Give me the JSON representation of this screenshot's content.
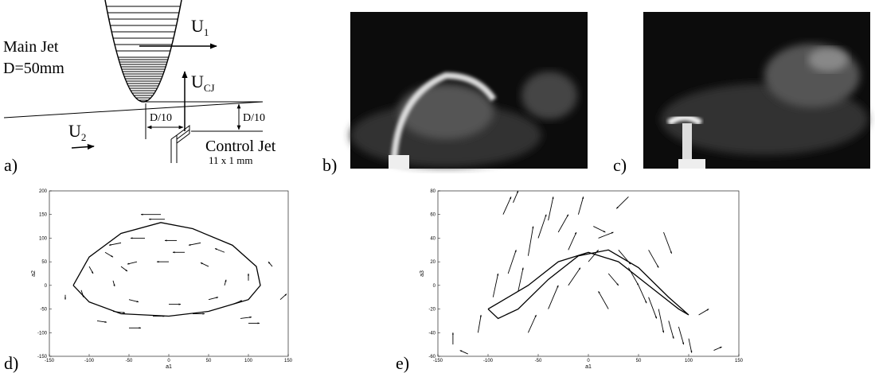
{
  "figure": {
    "panel_labels": [
      "a)",
      "b)",
      "c)",
      "d)",
      "e)"
    ],
    "diagram": {
      "u1": {
        "main": "U",
        "sub": "1"
      },
      "main_jet": "Main Jet",
      "diameter": "D=50mm",
      "ucj": {
        "main": "U",
        "sub": "CJ"
      },
      "offset_x": "D/10",
      "offset_y": "D/10",
      "u2": {
        "main": "U",
        "sub": "2"
      },
      "control_jet": "Control Jet",
      "control_size": "11 x 1 mm"
    }
  },
  "chart_data": [
    {
      "type": "quiver",
      "xlabel": "a1",
      "ylabel": "a2",
      "color": "#000000",
      "xlim": [
        -150,
        150
      ],
      "ylim": [
        -150,
        200
      ],
      "xticks": [
        -150,
        -100,
        -50,
        0,
        50,
        100,
        150
      ],
      "yticks": [
        -150,
        -100,
        -50,
        0,
        50,
        100,
        150,
        200
      ],
      "curve": {
        "x": [
          -120,
          -100,
          -60,
          -10,
          30,
          80,
          110,
          115,
          100,
          50,
          0,
          -60,
          -100,
          -120
        ],
        "y": [
          0,
          60,
          110,
          133,
          120,
          85,
          40,
          0,
          -30,
          -55,
          -65,
          -60,
          -35,
          0
        ]
      },
      "vectors": {
        "x": [
          -10,
          -5,
          -60,
          -30,
          10,
          40,
          70,
          100,
          80,
          30,
          -20,
          -70,
          -110,
          -100,
          -80,
          -60,
          -70,
          -50,
          0,
          50,
          70,
          50,
          0,
          -40,
          130,
          140,
          -130,
          100,
          -50,
          90,
          -90,
          20
        ],
        "y": [
          150,
          140,
          90,
          100,
          95,
          90,
          70,
          10,
          -40,
          -60,
          -65,
          -55,
          -10,
          40,
          70,
          40,
          10,
          -30,
          -40,
          -30,
          0,
          40,
          50,
          50,
          40,
          -30,
          -20,
          -80,
          -90,
          -70,
          -75,
          70
        ],
        "u": [
          -25,
          -20,
          -15,
          -18,
          -15,
          -15,
          -12,
          0,
          12,
          15,
          15,
          15,
          3,
          5,
          10,
          8,
          2,
          12,
          15,
          12,
          2,
          -10,
          -15,
          -12,
          -5,
          8,
          0,
          14,
          15,
          14,
          12,
          -15
        ],
        "v": [
          0,
          0,
          -5,
          0,
          0,
          -5,
          8,
          15,
          8,
          0,
          0,
          -3,
          -15,
          -15,
          -10,
          -10,
          -12,
          -5,
          0,
          5,
          12,
          8,
          0,
          -5,
          10,
          12,
          -10,
          0,
          0,
          3,
          -3,
          0
        ]
      }
    },
    {
      "type": "quiver",
      "xlabel": "a1",
      "ylabel": "a3",
      "color": "#000000",
      "xlim": [
        -150,
        150
      ],
      "ylim": [
        -60,
        80
      ],
      "xticks": [
        -150,
        -100,
        -50,
        0,
        50,
        100,
        150
      ],
      "yticks": [
        -60,
        -40,
        -20,
        0,
        20,
        40,
        60,
        80
      ],
      "curve": {
        "x": [
          -100,
          -90,
          -70,
          -40,
          -10,
          20,
          50,
          80,
          100,
          90,
          60,
          30,
          0,
          -30,
          -60,
          -90,
          -100
        ],
        "y": [
          -20,
          -28,
          -20,
          5,
          25,
          30,
          15,
          -10,
          -25,
          -20,
          0,
          20,
          28,
          20,
          0,
          -15,
          -20
        ]
      },
      "vectors": {
        "x": [
          -110,
          -95,
          -80,
          -60,
          -50,
          -40,
          -30,
          -20,
          -10,
          0,
          10,
          20,
          30,
          40,
          50,
          60,
          70,
          80,
          90,
          100,
          110,
          -60,
          -40,
          -70,
          -20,
          20,
          -120,
          -85,
          -75,
          40,
          75,
          125,
          -135,
          5,
          60
        ],
        "y": [
          -40,
          -10,
          10,
          25,
          40,
          55,
          45,
          30,
          60,
          20,
          40,
          10,
          30,
          15,
          0,
          -10,
          -20,
          -30,
          -35,
          -45,
          -25,
          -40,
          -20,
          -5,
          0,
          -20,
          -58,
          60,
          70,
          75,
          45,
          -55,
          -50,
          50,
          30
        ],
        "u": [
          3,
          5,
          8,
          5,
          8,
          5,
          10,
          8,
          5,
          10,
          15,
          10,
          12,
          10,
          8,
          8,
          5,
          5,
          5,
          3,
          10,
          8,
          10,
          5,
          12,
          -10,
          -8,
          8,
          5,
          -12,
          8,
          8,
          0,
          12,
          10
        ],
        "v": [
          15,
          20,
          20,
          25,
          20,
          20,
          15,
          15,
          15,
          10,
          5,
          -10,
          -12,
          -15,
          -15,
          -18,
          -20,
          -15,
          -15,
          -12,
          5,
          15,
          20,
          20,
          15,
          15,
          3,
          15,
          10,
          -10,
          -18,
          3,
          10,
          -5,
          -15
        ]
      }
    }
  ]
}
